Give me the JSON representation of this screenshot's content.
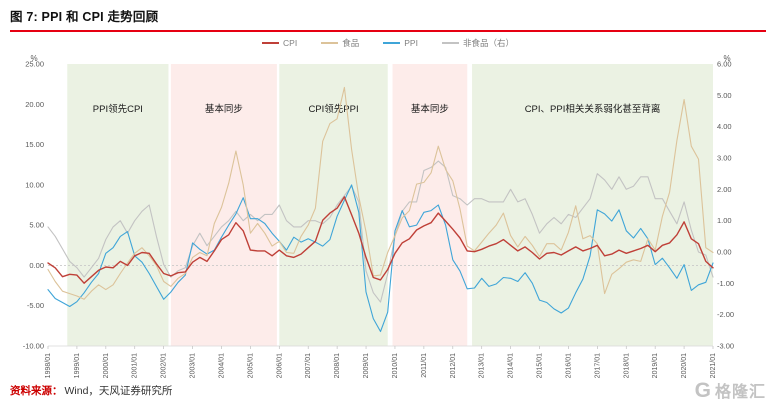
{
  "figure": {
    "title": "图 7: PPI 和 CPI 走势回顾",
    "source_label": "资料来源：",
    "source_text": "Wind，天风证券研究所",
    "watermark": "格隆汇"
  },
  "chart_data": {
    "type": "line",
    "x_start": "1998/01",
    "x_end": "2021/01",
    "x_step": "quarterly",
    "x_tick_labels": [
      "1998/01",
      "1999/01",
      "2000/01",
      "2001/01",
      "2002/01",
      "2003/01",
      "2004/01",
      "2005/01",
      "2006/01",
      "2007/01",
      "2008/01",
      "2009/01",
      "2010/01",
      "2011/01",
      "2012/01",
      "2013/01",
      "2014/01",
      "2015/01",
      "2016/01",
      "2017/01",
      "2018/01",
      "2019/01",
      "2020/01",
      "2021/01"
    ],
    "left_axis": {
      "unit": "%",
      "min": -10,
      "max": 25,
      "ticks": [
        "25.00",
        "20.00",
        "15.00",
        "10.00",
        "5.00",
        "0.00",
        "-5.00",
        "-10.00"
      ]
    },
    "right_axis": {
      "unit": "%",
      "min": -3,
      "max": 6,
      "ticks": [
        "6.00",
        "5.00",
        "4.00",
        "3.00",
        "2.00",
        "1.00",
        "0.00",
        "-1.00",
        "-2.00",
        "-3.00"
      ]
    },
    "grid": "zero-line-dashed-only",
    "legend_position": "top-center",
    "series": [
      {
        "name": "CPI",
        "axis": "left",
        "color": "#bf4038",
        "values": [
          0.3,
          -0.3,
          -1.4,
          -1.1,
          -1.2,
          -2.2,
          -1.4,
          -0.6,
          -0.2,
          -0.3,
          0.5,
          0.0,
          1.2,
          1.6,
          1.5,
          0.2,
          -1.0,
          -1.3,
          -0.9,
          -0.8,
          0.4,
          1.0,
          0.5,
          1.8,
          3.2,
          3.8,
          5.3,
          4.3,
          1.9,
          1.8,
          1.8,
          1.2,
          1.9,
          1.2,
          1.0,
          1.4,
          2.2,
          3.0,
          5.6,
          6.5,
          7.1,
          8.5,
          6.3,
          4.0,
          1.0,
          -1.5,
          -1.8,
          -0.5,
          1.5,
          2.8,
          3.3,
          4.4,
          4.9,
          5.3,
          6.5,
          5.5,
          4.5,
          3.4,
          1.8,
          1.7,
          2.0,
          2.4,
          2.7,
          3.2,
          2.5,
          1.8,
          2.3,
          1.6,
          0.8,
          1.5,
          1.6,
          1.3,
          1.8,
          2.3,
          1.8,
          2.1,
          2.5,
          1.2,
          1.4,
          1.9,
          1.5,
          1.8,
          2.1,
          2.5,
          1.7,
          2.5,
          2.8,
          3.8,
          5.4,
          3.3,
          2.7,
          0.5,
          -0.3
        ]
      },
      {
        "name": "食品",
        "axis": "left",
        "color": "#dcc39a",
        "values": [
          -0.5,
          -2.0,
          -3.2,
          -3.5,
          -3.8,
          -4.2,
          -3.2,
          -2.4,
          -3.0,
          -2.4,
          -1.0,
          0.3,
          1.5,
          2.2,
          1.2,
          0.0,
          -2.0,
          -2.6,
          -1.6,
          -1.0,
          1.0,
          1.6,
          1.2,
          5.2,
          7.2,
          10.2,
          14.2,
          10.0,
          4.0,
          5.2,
          4.0,
          2.4,
          3.0,
          1.6,
          1.5,
          3.6,
          5.0,
          7.1,
          15.4,
          17.6,
          18.2,
          22.1,
          14.4,
          8.5,
          4.2,
          -1.3,
          -1.2,
          1.6,
          3.7,
          5.9,
          6.8,
          10.1,
          10.3,
          11.5,
          14.8,
          11.9,
          10.5,
          7.0,
          2.4,
          1.8,
          2.9,
          4.0,
          5.0,
          6.5,
          3.7,
          2.3,
          3.6,
          2.5,
          1.1,
          2.7,
          2.7,
          1.9,
          4.1,
          7.4,
          3.3,
          3.7,
          2.7,
          -3.5,
          -1.1,
          -0.4,
          0.4,
          0.7,
          0.5,
          3.3,
          1.9,
          6.1,
          9.1,
          15.5,
          20.6,
          14.8,
          13.2,
          2.2,
          1.6
        ]
      },
      {
        "name": "PPI",
        "axis": "left",
        "color": "#3fa5d8",
        "values": [
          -3.0,
          -4.1,
          -4.6,
          -5.1,
          -4.5,
          -3.4,
          -2.1,
          -1.0,
          1.5,
          2.2,
          3.6,
          4.2,
          1.2,
          0.4,
          -1.0,
          -2.6,
          -4.2,
          -3.3,
          -2.1,
          -1.2,
          2.8,
          2.0,
          1.4,
          1.9,
          3.5,
          5.0,
          6.4,
          8.4,
          5.8,
          5.8,
          5.2,
          4.0,
          3.0,
          1.9,
          3.5,
          2.9,
          3.3,
          2.9,
          2.4,
          3.2,
          6.1,
          8.1,
          10.0,
          6.6,
          -3.3,
          -6.6,
          -8.2,
          -5.8,
          4.3,
          6.8,
          4.8,
          5.0,
          6.6,
          6.8,
          7.5,
          5.0,
          0.7,
          -0.7,
          -2.9,
          -2.8,
          -1.6,
          -2.6,
          -2.3,
          -1.5,
          -1.6,
          -2.0,
          -0.9,
          -2.2,
          -4.3,
          -4.6,
          -5.4,
          -5.9,
          -5.3,
          -3.4,
          -1.7,
          1.2,
          6.9,
          6.4,
          5.5,
          6.9,
          4.3,
          3.4,
          4.6,
          3.3,
          0.1,
          0.9,
          -0.3,
          -1.6,
          0.1,
          -3.1,
          -2.4,
          -2.1,
          0.3
        ]
      },
      {
        "name": "非食品（右）",
        "axis": "right",
        "color": "#c3c3c3",
        "values": [
          0.8,
          0.5,
          0.1,
          -0.3,
          -0.5,
          -0.8,
          -0.5,
          -0.2,
          0.4,
          0.8,
          1.0,
          0.6,
          1.0,
          1.3,
          1.5,
          0.5,
          -0.4,
          -0.8,
          -0.6,
          -0.5,
          0.2,
          0.6,
          0.2,
          0.5,
          0.8,
          1.0,
          1.3,
          1.0,
          1.2,
          1.0,
          1.2,
          1.2,
          1.5,
          1.0,
          0.8,
          0.8,
          1.0,
          1.0,
          0.9,
          1.1,
          1.5,
          1.8,
          2.1,
          1.6,
          -0.6,
          -1.3,
          -1.6,
          -0.7,
          0.5,
          1.3,
          1.6,
          1.6,
          2.6,
          2.7,
          2.9,
          2.7,
          1.8,
          1.7,
          1.5,
          1.7,
          1.7,
          1.6,
          1.6,
          1.6,
          2.0,
          1.6,
          1.7,
          1.2,
          0.6,
          0.9,
          1.1,
          0.9,
          1.2,
          1.1,
          1.4,
          1.7,
          2.5,
          2.3,
          2.0,
          2.4,
          2.0,
          2.1,
          2.4,
          2.4,
          1.7,
          1.7,
          1.3,
          0.9,
          1.6,
          0.7,
          0.0,
          -0.1,
          -0.8
        ]
      }
    ],
    "regions": [
      {
        "label": "PPI领先CPI",
        "from": "1998/09",
        "to": "2002/03",
        "color": "#ebf2e3"
      },
      {
        "label": "基本同步",
        "from": "2002/04",
        "to": "2005/12",
        "color": "#fdecea"
      },
      {
        "label": "CPI领先PPI",
        "from": "2006/01",
        "to": "2009/10",
        "color": "#ebf2e3"
      },
      {
        "label": "基本同步",
        "from": "2009/12",
        "to": "2012/07",
        "color": "#fdecea"
      },
      {
        "label": "CPI、PPI相关关系弱化甚至背离",
        "from": "2012/09",
        "to": "2021/01",
        "color": "#ebf2e3"
      }
    ]
  }
}
